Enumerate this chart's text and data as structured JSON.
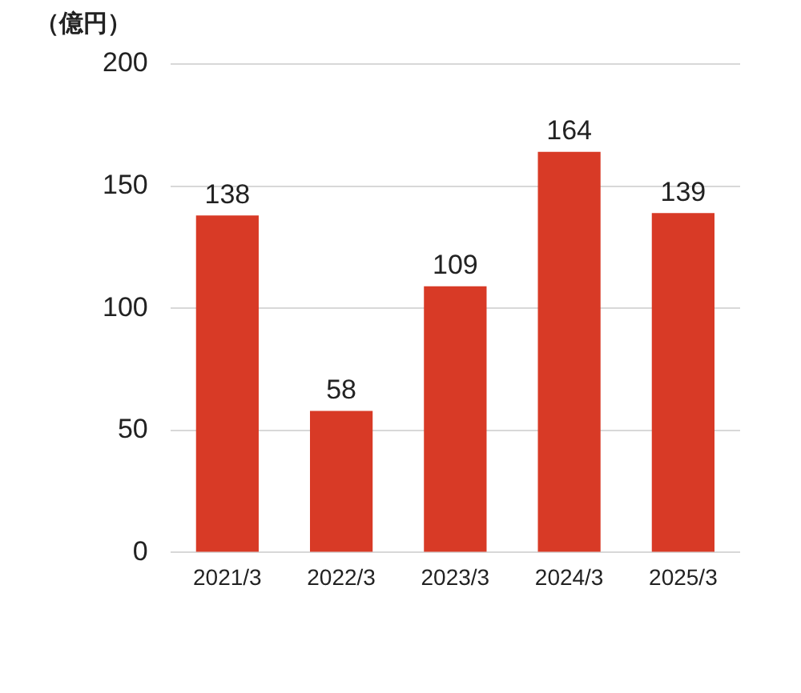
{
  "chart_data": {
    "type": "bar",
    "ylabel": "（億円）",
    "categories": [
      "2021/3",
      "2022/3",
      "2023/3",
      "2024/3",
      "2025/3"
    ],
    "values": [
      138,
      58,
      109,
      164,
      139
    ],
    "color": "#d83a26",
    "ylim": [
      0,
      200
    ],
    "yticks": [
      0,
      50,
      100,
      150,
      200
    ],
    "grid": "y",
    "data_labels": true,
    "legend": false
  }
}
